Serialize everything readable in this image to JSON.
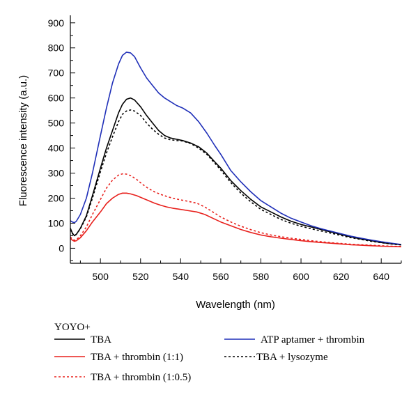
{
  "chart_data": {
    "type": "line",
    "xlabel": "Wavelength (nm)",
    "ylabel": "Fluorescence intensity (a.u.)",
    "xlim": [
      485,
      650
    ],
    "ylim": [
      -60,
      930
    ],
    "xticks": [
      500,
      520,
      540,
      560,
      580,
      600,
      620,
      640
    ],
    "yticks": [
      0,
      100,
      200,
      300,
      400,
      500,
      600,
      700,
      800,
      900
    ],
    "grid": false,
    "legend_title": "YOYO+",
    "legend_position": "bottom",
    "series": [
      {
        "name": "TBA",
        "color": "#000000",
        "dash": "solid",
        "points": [
          [
            485,
            80
          ],
          [
            486,
            60
          ],
          [
            487,
            50
          ],
          [
            488,
            55
          ],
          [
            490,
            80
          ],
          [
            493,
            130
          ],
          [
            496,
            210
          ],
          [
            500,
            320
          ],
          [
            503,
            400
          ],
          [
            506,
            470
          ],
          [
            509,
            540
          ],
          [
            511,
            575
          ],
          [
            513,
            595
          ],
          [
            515,
            600
          ],
          [
            517,
            592
          ],
          [
            520,
            565
          ],
          [
            523,
            530
          ],
          [
            526,
            500
          ],
          [
            529,
            470
          ],
          [
            532,
            450
          ],
          [
            535,
            440
          ],
          [
            538,
            435
          ],
          [
            541,
            430
          ],
          [
            545,
            420
          ],
          [
            549,
            405
          ],
          [
            553,
            380
          ],
          [
            557,
            345
          ],
          [
            560,
            320
          ],
          [
            565,
            270
          ],
          [
            570,
            230
          ],
          [
            575,
            195
          ],
          [
            580,
            165
          ],
          [
            585,
            145
          ],
          [
            590,
            125
          ],
          [
            595,
            108
          ],
          [
            600,
            95
          ],
          [
            605,
            85
          ],
          [
            610,
            75
          ],
          [
            615,
            65
          ],
          [
            620,
            55
          ],
          [
            625,
            45
          ],
          [
            630,
            37
          ],
          [
            635,
            30
          ],
          [
            640,
            23
          ],
          [
            645,
            18
          ],
          [
            650,
            14
          ]
        ]
      },
      {
        "name": "TBA + thrombin (1:1)",
        "color": "#e8201c",
        "dash": "solid",
        "points": [
          [
            485,
            40
          ],
          [
            486,
            32
          ],
          [
            487,
            28
          ],
          [
            488,
            30
          ],
          [
            490,
            42
          ],
          [
            493,
            70
          ],
          [
            496,
            105
          ],
          [
            500,
            145
          ],
          [
            503,
            178
          ],
          [
            506,
            200
          ],
          [
            509,
            215
          ],
          [
            511,
            220
          ],
          [
            513,
            220
          ],
          [
            515,
            217
          ],
          [
            518,
            210
          ],
          [
            521,
            200
          ],
          [
            524,
            190
          ],
          [
            527,
            180
          ],
          [
            530,
            172
          ],
          [
            533,
            165
          ],
          [
            536,
            160
          ],
          [
            540,
            155
          ],
          [
            544,
            150
          ],
          [
            548,
            145
          ],
          [
            552,
            135
          ],
          [
            556,
            120
          ],
          [
            560,
            105
          ],
          [
            565,
            90
          ],
          [
            570,
            75
          ],
          [
            575,
            63
          ],
          [
            580,
            53
          ],
          [
            585,
            46
          ],
          [
            590,
            40
          ],
          [
            595,
            35
          ],
          [
            600,
            30
          ],
          [
            605,
            26
          ],
          [
            610,
            23
          ],
          [
            615,
            20
          ],
          [
            620,
            17
          ],
          [
            625,
            14
          ],
          [
            630,
            12
          ],
          [
            635,
            10
          ],
          [
            640,
            8
          ],
          [
            645,
            7
          ],
          [
            650,
            6
          ]
        ]
      },
      {
        "name": "ATP aptamer + thrombin",
        "color": "#1f2fb8",
        "dash": "solid",
        "points": [
          [
            485,
            110
          ],
          [
            486,
            105
          ],
          [
            487,
            102
          ],
          [
            488,
            108
          ],
          [
            490,
            135
          ],
          [
            493,
            200
          ],
          [
            496,
            300
          ],
          [
            500,
            450
          ],
          [
            503,
            560
          ],
          [
            506,
            660
          ],
          [
            509,
            735
          ],
          [
            511,
            770
          ],
          [
            513,
            783
          ],
          [
            515,
            780
          ],
          [
            517,
            765
          ],
          [
            520,
            720
          ],
          [
            523,
            680
          ],
          [
            526,
            650
          ],
          [
            529,
            620
          ],
          [
            532,
            600
          ],
          [
            535,
            585
          ],
          [
            538,
            570
          ],
          [
            541,
            560
          ],
          [
            545,
            540
          ],
          [
            549,
            505
          ],
          [
            553,
            460
          ],
          [
            557,
            410
          ],
          [
            560,
            375
          ],
          [
            565,
            310
          ],
          [
            570,
            265
          ],
          [
            575,
            225
          ],
          [
            580,
            190
          ],
          [
            585,
            165
          ],
          [
            590,
            140
          ],
          [
            595,
            120
          ],
          [
            600,
            105
          ],
          [
            605,
            90
          ],
          [
            610,
            78
          ],
          [
            615,
            68
          ],
          [
            620,
            58
          ],
          [
            625,
            48
          ],
          [
            630,
            40
          ],
          [
            635,
            33
          ],
          [
            640,
            26
          ],
          [
            645,
            20
          ],
          [
            650,
            15
          ]
        ]
      },
      {
        "name": "TBA + lysozyme",
        "color": "#000000",
        "dash": "dotted",
        "points": [
          [
            485,
            75
          ],
          [
            486,
            58
          ],
          [
            487,
            52
          ],
          [
            488,
            56
          ],
          [
            490,
            78
          ],
          [
            493,
            125
          ],
          [
            496,
            200
          ],
          [
            500,
            305
          ],
          [
            503,
            380
          ],
          [
            506,
            445
          ],
          [
            509,
            505
          ],
          [
            511,
            535
          ],
          [
            513,
            548
          ],
          [
            515,
            552
          ],
          [
            517,
            548
          ],
          [
            520,
            530
          ],
          [
            523,
            500
          ],
          [
            526,
            475
          ],
          [
            529,
            455
          ],
          [
            532,
            440
          ],
          [
            535,
            433
          ],
          [
            538,
            430
          ],
          [
            541,
            428
          ],
          [
            545,
            418
          ],
          [
            549,
            400
          ],
          [
            553,
            375
          ],
          [
            557,
            340
          ],
          [
            560,
            312
          ],
          [
            565,
            262
          ],
          [
            570,
            220
          ],
          [
            575,
            185
          ],
          [
            580,
            155
          ],
          [
            585,
            135
          ],
          [
            590,
            115
          ],
          [
            595,
            100
          ],
          [
            600,
            88
          ],
          [
            605,
            78
          ],
          [
            610,
            69
          ],
          [
            615,
            60
          ],
          [
            620,
            51
          ],
          [
            625,
            42
          ],
          [
            630,
            35
          ],
          [
            635,
            28
          ],
          [
            640,
            22
          ],
          [
            645,
            17
          ],
          [
            650,
            13
          ]
        ]
      },
      {
        "name": "TBA + thrombin (1:0.5)",
        "color": "#e8201c",
        "dash": "dotted",
        "points": [
          [
            485,
            45
          ],
          [
            486,
            36
          ],
          [
            487,
            32
          ],
          [
            488,
            34
          ],
          [
            490,
            50
          ],
          [
            493,
            85
          ],
          [
            496,
            135
          ],
          [
            500,
            195
          ],
          [
            503,
            240
          ],
          [
            506,
            272
          ],
          [
            509,
            292
          ],
          [
            511,
            297
          ],
          [
            513,
            296
          ],
          [
            515,
            290
          ],
          [
            518,
            275
          ],
          [
            521,
            255
          ],
          [
            524,
            238
          ],
          [
            527,
            225
          ],
          [
            530,
            215
          ],
          [
            533,
            207
          ],
          [
            536,
            200
          ],
          [
            540,
            193
          ],
          [
            544,
            187
          ],
          [
            548,
            180
          ],
          [
            552,
            165
          ],
          [
            556,
            145
          ],
          [
            560,
            125
          ],
          [
            565,
            105
          ],
          [
            570,
            88
          ],
          [
            575,
            74
          ],
          [
            580,
            62
          ],
          [
            585,
            53
          ],
          [
            590,
            46
          ],
          [
            595,
            40
          ],
          [
            600,
            35
          ],
          [
            605,
            30
          ],
          [
            610,
            26
          ],
          [
            615,
            22
          ],
          [
            620,
            19
          ],
          [
            625,
            16
          ],
          [
            630,
            14
          ],
          [
            635,
            12
          ],
          [
            640,
            10
          ],
          [
            645,
            8
          ],
          [
            650,
            7
          ]
        ]
      }
    ]
  }
}
